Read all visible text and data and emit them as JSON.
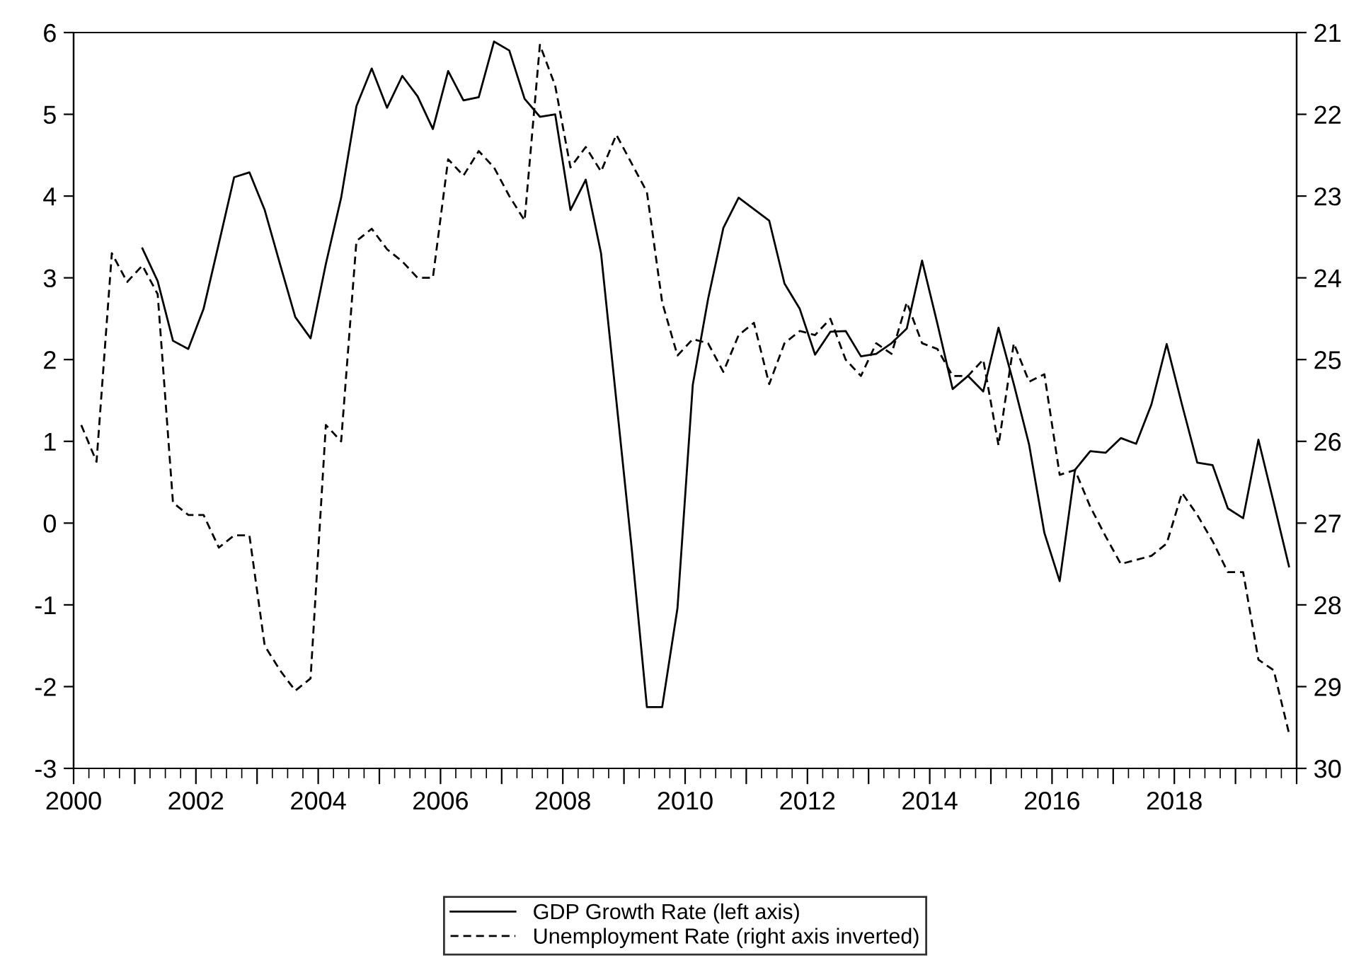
{
  "chart_data": {
    "type": "line",
    "x": [
      2000.125,
      2000.375,
      2000.625,
      2000.875,
      2001.125,
      2001.375,
      2001.625,
      2001.875,
      2002.125,
      2002.375,
      2002.625,
      2002.875,
      2003.125,
      2003.375,
      2003.625,
      2003.875,
      2004.125,
      2004.375,
      2004.625,
      2004.875,
      2005.125,
      2005.375,
      2005.625,
      2005.875,
      2006.125,
      2006.375,
      2006.625,
      2006.875,
      2007.125,
      2007.375,
      2007.625,
      2007.875,
      2008.125,
      2008.375,
      2008.625,
      2008.875,
      2009.125,
      2009.375,
      2009.625,
      2009.875,
      2010.125,
      2010.375,
      2010.625,
      2010.875,
      2011.125,
      2011.375,
      2011.625,
      2011.875,
      2012.125,
      2012.375,
      2012.625,
      2012.875,
      2013.125,
      2013.375,
      2013.625,
      2013.875,
      2014.125,
      2014.375,
      2014.625,
      2014.875,
      2015.125,
      2015.375,
      2015.625,
      2015.875,
      2016.125,
      2016.375,
      2016.625,
      2016.875,
      2017.125,
      2017.375,
      2017.625,
      2017.875,
      2018.125,
      2018.375,
      2018.625,
      2018.875,
      2019.125,
      2019.375,
      2019.625,
      2019.875
    ],
    "series": [
      {
        "name": "GDP Growth Rate (left axis)",
        "color": "#000000",
        "line_style": "solid",
        "values": [
          null,
          null,
          null,
          null,
          3.36,
          2.96,
          2.23,
          2.13,
          2.62,
          3.42,
          4.23,
          4.29,
          3.83,
          3.17,
          2.52,
          2.26,
          3.17,
          3.98,
          5.1,
          5.56,
          5.08,
          5.47,
          5.22,
          4.82,
          5.53,
          5.17,
          5.21,
          5.89,
          5.78,
          5.19,
          4.97,
          5.0,
          3.83,
          4.2,
          3.3,
          1.5,
          -0.3,
          -2.25,
          -2.25,
          -1.04,
          1.69,
          2.74,
          3.61,
          3.98,
          3.84,
          3.7,
          2.93,
          2.62,
          2.06,
          2.34,
          2.35,
          2.04,
          2.07,
          2.2,
          2.38,
          3.21,
          2.44,
          1.64,
          1.8,
          1.61,
          2.39,
          1.7,
          0.96,
          -0.12,
          -0.71,
          0.65,
          0.88,
          0.86,
          1.04,
          0.97,
          1.45,
          2.19,
          1.45,
          0.74,
          0.71,
          0.18,
          0.06,
          1.02,
          0.25,
          -0.53
        ]
      },
      {
        "name": "Unemployment Rate (right axis inverted)",
        "color": "#000000",
        "line_style": "dashed",
        "axis": "y2",
        "values": [
          25.8,
          26.25,
          23.7,
          24.05,
          23.85,
          24.2,
          26.75,
          26.9,
          26.9,
          27.3,
          27.15,
          27.15,
          28.5,
          28.8,
          29.05,
          28.9,
          25.8,
          26.0,
          23.55,
          23.4,
          23.65,
          23.8,
          24.0,
          24.0,
          22.55,
          22.75,
          22.45,
          22.65,
          23.0,
          23.3,
          21.15,
          21.65,
          22.65,
          22.4,
          22.7,
          22.25,
          22.6,
          22.95,
          24.3,
          24.95,
          24.75,
          24.8,
          25.15,
          24.7,
          24.55,
          25.3,
          24.8,
          24.65,
          24.7,
          24.5,
          25.0,
          25.2,
          24.8,
          24.93,
          24.3,
          24.8,
          24.87,
          25.2,
          25.2,
          25.0,
          26.05,
          24.8,
          25.27,
          25.18,
          26.41,
          26.35,
          26.8,
          27.16,
          27.5,
          27.45,
          27.4,
          27.25,
          26.63,
          26.9,
          27.22,
          27.6,
          27.6,
          28.67,
          28.8,
          29.57
        ]
      }
    ],
    "xlim": [
      2000,
      2020
    ],
    "xticks": [
      2000,
      {
        "value": 2001,
        "label": null
      },
      2002,
      {
        "value": 2003,
        "label": null
      },
      2004,
      {
        "value": 2005,
        "label": null
      },
      2006,
      {
        "value": 2007,
        "label": null
      },
      2008,
      {
        "value": 2009,
        "label": null
      },
      2010,
      {
        "value": 2011,
        "label": null
      },
      2012,
      {
        "value": 2013,
        "label": null
      },
      2014,
      {
        "value": 2015,
        "label": null
      },
      2016,
      {
        "value": 2017,
        "label": null
      },
      2018,
      {
        "value": 2019,
        "label": null
      },
      {
        "value": 2020,
        "label": null
      }
    ],
    "ylim": [
      -3,
      6
    ],
    "yticks": [
      -3,
      -2,
      -1,
      0,
      1,
      2,
      3,
      4,
      5,
      6
    ],
    "y2lim": [
      30,
      21
    ],
    "y2ticks": [
      30,
      29,
      28,
      27,
      26,
      25,
      24,
      23,
      22,
      21
    ],
    "grid": false,
    "legend": "bottom"
  }
}
